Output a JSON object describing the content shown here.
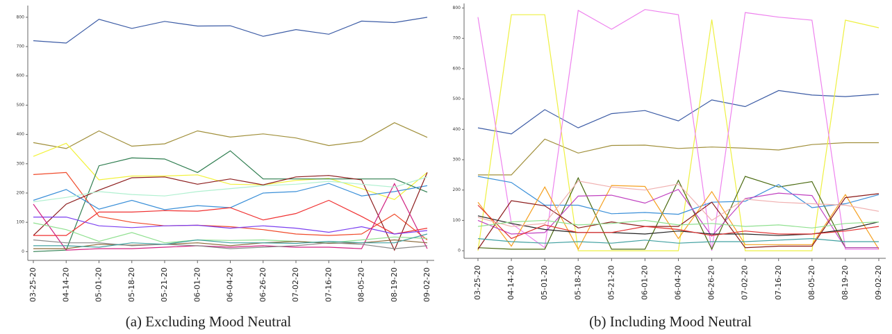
{
  "chart_data": [
    {
      "type": "line",
      "caption": "(a) Excluding Mood Neutral",
      "categories": [
        "03-25-20",
        "04-14-20",
        "05-01-20",
        "05-18-20",
        "05-21-20",
        "06-01-20",
        "06-04-20",
        "06-26-20",
        "07-02-20",
        "07-16-20",
        "08-05-20",
        "08-19-20",
        "09-02-20"
      ],
      "ylim": [
        -30,
        840
      ],
      "yticks": [
        0,
        100,
        200,
        300,
        400,
        500,
        600,
        700,
        800
      ],
      "grid": false,
      "series": [
        {
          "color": "#3b5ba5",
          "values": [
            720,
            712,
            793,
            762,
            786,
            770,
            771,
            735,
            758,
            742,
            787,
            782,
            800
          ]
        },
        {
          "color": "#a08f3a",
          "values": [
            372,
            352,
            412,
            360,
            368,
            412,
            391,
            402,
            388,
            362,
            376,
            440,
            390
          ]
        },
        {
          "color": "#f2f23a",
          "values": [
            325,
            370,
            245,
            258,
            258,
            262,
            230,
            228,
            243,
            250,
            215,
            178,
            270
          ]
        },
        {
          "color": "#2e7d4f",
          "values": [
            0,
            5,
            293,
            320,
            316,
            270,
            344,
            248,
            248,
            248,
            248,
            248,
            203
          ]
        },
        {
          "color": "#f04a2a",
          "values": [
            263,
            270,
            120,
            100,
            88,
            90,
            85,
            75,
            60,
            55,
            60,
            128,
            40
          ]
        },
        {
          "color": "#3a8fd8",
          "values": [
            175,
            212,
            145,
            175,
            143,
            157,
            150,
            200,
            205,
            233,
            190,
            205,
            225
          ]
        },
        {
          "color": "#8b1a1a",
          "values": [
            55,
            162,
            210,
            252,
            255,
            230,
            248,
            228,
            255,
            260,
            245,
            5,
            270
          ]
        },
        {
          "color": "#f03030",
          "values": [
            55,
            55,
            135,
            135,
            140,
            138,
            150,
            108,
            130,
            175,
            120,
            60,
            80
          ]
        },
        {
          "color": "#7b3ff0",
          "values": [
            118,
            118,
            88,
            82,
            88,
            90,
            80,
            88,
            80,
            66,
            85,
            60,
            72
          ]
        },
        {
          "color": "#d02080",
          "values": [
            162,
            5,
            10,
            10,
            15,
            20,
            15,
            20,
            15,
            15,
            10,
            232,
            10
          ]
        },
        {
          "color": "#b0f0d0",
          "values": [
            170,
            185,
            205,
            195,
            190,
            205,
            215,
            225,
            230,
            240,
            230,
            220,
            255
          ]
        },
        {
          "color": "#90e090",
          "values": [
            98,
            75,
            35,
            65,
            30,
            40,
            38,
            40,
            35,
            30,
            40,
            50,
            45
          ]
        },
        {
          "color": "#8a6a3a",
          "values": [
            10,
            10,
            25,
            22,
            25,
            30,
            20,
            30,
            35,
            28,
            30,
            40,
            30
          ]
        },
        {
          "color": "#888888",
          "values": [
            40,
            30,
            30,
            20,
            25,
            20,
            10,
            15,
            20,
            30,
            25,
            10,
            20
          ]
        },
        {
          "color": "#40a0a0",
          "values": [
            20,
            20,
            15,
            30,
            25,
            40,
            30,
            30,
            28,
            35,
            30,
            30,
            60
          ]
        }
      ]
    },
    {
      "type": "line",
      "caption": "(b) Including Mood Neutral",
      "categories": [
        "03-25-20",
        "04-14-20",
        "05-01-20",
        "05-18-20",
        "05-21-20",
        "06-01-20",
        "06-04-20",
        "06-26-20",
        "07-02-20",
        "07-16-20",
        "08-05-20",
        "08-19-20",
        "09-02-20"
      ],
      "ylim": [
        -25,
        815
      ],
      "yticks": [
        0,
        100,
        200,
        300,
        400,
        500,
        600,
        700,
        800
      ],
      "grid": false,
      "series": [
        {
          "color": "#3b5ba5",
          "values": [
            405,
            385,
            465,
            405,
            452,
            462,
            428,
            497,
            475,
            528,
            513,
            508,
            516
          ]
        },
        {
          "color": "#a08f3a",
          "values": [
            250,
            250,
            368,
            322,
            347,
            348,
            337,
            342,
            338,
            332,
            350,
            356,
            356
          ]
        },
        {
          "color": "#eef040",
          "values": [
            0,
            778,
            778,
            0,
            0,
            0,
            0,
            762,
            0,
            0,
            0,
            760,
            735
          ]
        },
        {
          "color": "#ee82ee",
          "values": [
            770,
            90,
            10,
            792,
            730,
            795,
            778,
            0,
            785,
            770,
            760,
            5,
            5
          ]
        },
        {
          "color": "#4a6a10",
          "values": [
            10,
            5,
            5,
            240,
            5,
            5,
            232,
            5,
            245,
            210,
            228,
            10,
            10
          ]
        },
        {
          "color": "#3a8fd8",
          "values": [
            245,
            225,
            150,
            150,
            122,
            126,
            120,
            160,
            163,
            218,
            142,
            155,
            185
          ]
        },
        {
          "color": "#f5a020",
          "values": [
            160,
            15,
            210,
            5,
            215,
            212,
            40,
            195,
            20,
            20,
            20,
            185,
            5
          ]
        },
        {
          "color": "#c040c0",
          "values": [
            100,
            55,
            60,
            180,
            183,
            157,
            202,
            48,
            172,
            190,
            182,
            10,
            10
          ]
        },
        {
          "color": "#8b1a1a",
          "values": [
            5,
            165,
            148,
            75,
            95,
            80,
            80,
            160,
            10,
            15,
            15,
            175,
            188
          ]
        },
        {
          "color": "#222222",
          "values": [
            115,
            90,
            70,
            60,
            60,
            55,
            65,
            55,
            55,
            50,
            55,
            70,
            95
          ]
        },
        {
          "color": "#e03030",
          "values": [
            150,
            40,
            85,
            60,
            60,
            80,
            70,
            50,
            65,
            55,
            55,
            65,
            80
          ]
        },
        {
          "color": "#f0b0b0",
          "values": [
            110,
            80,
            90,
            230,
            210,
            200,
            220,
            100,
            170,
            160,
            155,
            150,
            130
          ]
        },
        {
          "color": "#40a0a0",
          "values": [
            40,
            30,
            25,
            30,
            25,
            35,
            25,
            30,
            30,
            35,
            40,
            30,
            30
          ]
        },
        {
          "color": "#90e090",
          "values": [
            80,
            95,
            100,
            85,
            90,
            100,
            85,
            90,
            80,
            85,
            75,
            90,
            95
          ]
        }
      ]
    }
  ]
}
